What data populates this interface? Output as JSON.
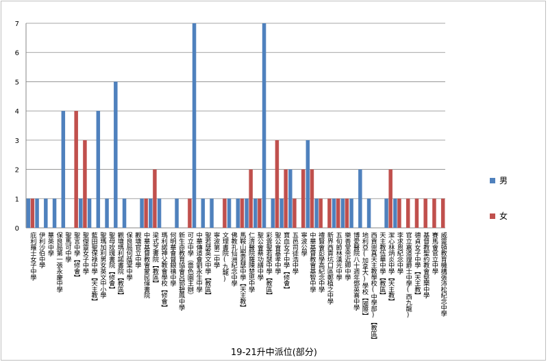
{
  "chart_data": {
    "type": "bar",
    "title": "19-21升中派位(部分)",
    "xlabel": "",
    "ylabel": "",
    "ylim": [
      0,
      7
    ],
    "yticks": [
      "0",
      "1",
      "2",
      "3",
      "4",
      "5",
      "6",
      "7"
    ],
    "grid": true,
    "legend_position": "right",
    "categories": [
      "庇利羅士女子中學",
      "伊利沙伯中學",
      "華英中學",
      "保良局第一張永慶中學",
      "聖馬可中學",
      "聖言中學【修會】",
      "聖傑靈女子中學",
      "藍田聖保祿中學【天主教】",
      "聖瑪加利男女英文中小學",
      "聖母玫瑰書院【修會】",
      "觀塘瑪利諾書院【教區】",
      "保良局何蔭棠中學",
      "觀塘官立中學",
      "中華基督教會蒙民偉書院",
      "梁式芝書院【教區】",
      "瑪利諾神父教會學校【修會】",
      "何明華會督銀禧中學",
      "新生命教育協會呂郭碧鳳中學",
      "可立中學（嗇色園主辦）",
      "中華傳道會劉永生中學",
      "聖若瑟英文中學【教區】",
      "寧波第二中學",
      "文理書院(九龍)",
      "佛教孔仙洲紀念中學",
      "馬鞍山聖若瑟中學【天主教】",
      "仁濟醫院羅陳楚思中學",
      "聖公會蔡功譜中學",
      "彩雲聖若瑟中學【教區】",
      "聖公會基孝中學",
      "寶血女子中學【修會】",
      "五邑司徒浩中學",
      "寧波公學",
      "中華基督教會基智中學",
      "禮賢會彭學高紀念中學",
      "新界西貢坑口區鄭植之中學",
      "五旬節林漢光中學",
      "樂善堂余近卿中學",
      "博愛醫院八十週年鄧英喜中學",
      "地利亞(加拿大)學校【國際】",
      "西貢崇真天主教學校(中學部)【教區】",
      "天主教伍華中學【教區】",
      "潔心林炳炎中學【天主教】",
      "李求恩紀念中學",
      "官立嘉道理爵士中學(西九龍)",
      "德貞女子中學【天主教】",
      "基督教聖約教會堅樂中學",
      "賽馬會官立中學",
      "威靈頓教育機構張沛松紀念中學"
    ],
    "series": [
      {
        "name": "男",
        "color": "#4f81bd",
        "values": [
          1,
          1,
          1,
          1,
          4,
          0,
          1,
          1,
          4,
          1,
          5,
          1,
          0,
          1,
          1,
          1,
          0,
          1,
          0,
          7,
          1,
          1,
          0,
          1,
          1,
          1,
          1,
          7,
          1,
          1,
          2,
          0,
          3,
          1,
          0,
          1,
          1,
          1,
          2,
          1,
          0,
          1,
          1,
          0,
          0,
          0,
          0,
          0
        ]
      },
      {
        "name": "女",
        "color": "#c0504d",
        "values": [
          1,
          0,
          0,
          0,
          0,
          4,
          3,
          0,
          0,
          0,
          0,
          0,
          0,
          1,
          2,
          0,
          0,
          0,
          1,
          0,
          0,
          0,
          1,
          0,
          1,
          2,
          1,
          0,
          3,
          2,
          1,
          2,
          2,
          1,
          1,
          1,
          1,
          0,
          0,
          0,
          0,
          2,
          1,
          1,
          1,
          1,
          1,
          1
        ]
      }
    ],
    "axis_title": "19-21升中派位(部分)"
  }
}
